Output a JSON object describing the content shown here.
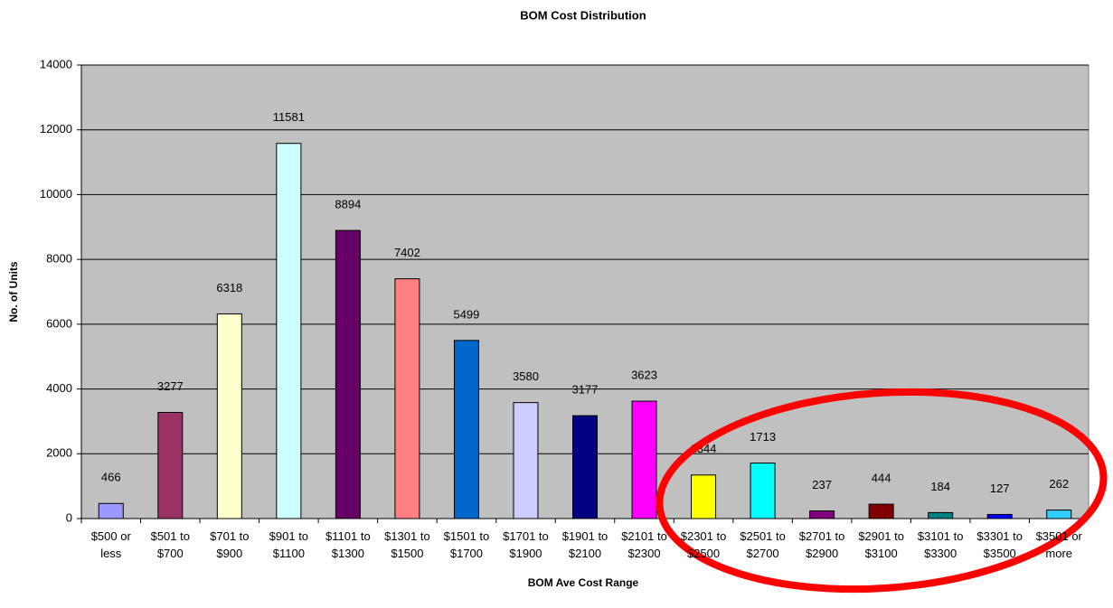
{
  "chart_data": {
    "type": "bar",
    "title": "BOM Cost Distribution",
    "x_label": "BOM Ave Cost Range",
    "y_label": "No. of Units",
    "categories": [
      "$500 or less",
      "$501 to $700",
      "$701 to $900",
      "$901 to $1100",
      "$1101 to $1300",
      "$1301 to $1500",
      "$1501 to $1700",
      "$1701 to $1900",
      "$1901 to $2100",
      "$2101 to $2300",
      "$2301 to $2500",
      "$2501 to $2700",
      "$2701 to $2900",
      "$2901 to $3100",
      "$3101 to $3300",
      "$3301 to $3500",
      "$3501 or more"
    ],
    "values": [
      466,
      3277,
      6318,
      11581,
      8894,
      7402,
      5499,
      3580,
      3177,
      3623,
      1344,
      1713,
      237,
      444,
      184,
      127,
      262
    ],
    "colors": [
      "#9999ff",
      "#993366",
      "#ffffcc",
      "#ccffff",
      "#660066",
      "#ff8080",
      "#0066cc",
      "#ccccff",
      "#000080",
      "#ff00ff",
      "#ffff00",
      "#00ffff",
      "#800080",
      "#800000",
      "#008080",
      "#0000ff",
      "#33ccff"
    ],
    "ylim": [
      0,
      14000
    ],
    "yticks": [
      0,
      2000,
      4000,
      6000,
      8000,
      10000,
      12000,
      14000
    ],
    "grid": true
  }
}
